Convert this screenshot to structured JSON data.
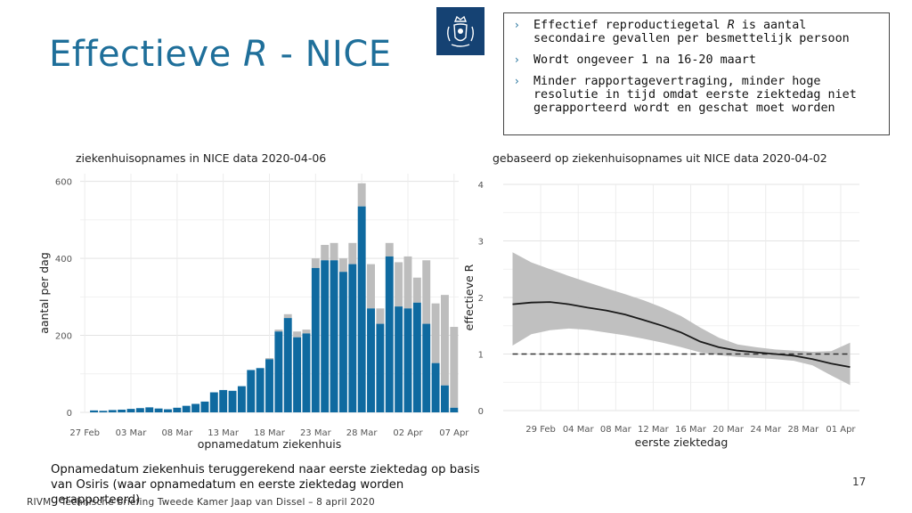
{
  "slide": {
    "title_main": "Effectieve ",
    "title_italic": "R",
    "title_end": " - NICE",
    "bullets": [
      {
        "parts": [
          "Effectief reproductiegetal ",
          "R",
          " is aantal secondaire gevallen per besmettelijk persoon"
        ]
      },
      {
        "parts": [
          "Wordt ongeveer 1 na 16-20 maart"
        ]
      },
      {
        "parts": [
          "Minder rapportagevertraging, minder hoge resolutie in tijd omdat eerste ziektedag niet gerapporteerd wordt en geschat moet worden"
        ]
      }
    ],
    "bullet_icon": "chevron-right-icon",
    "logo_icon": "rijksoverheid-logo-icon",
    "caption": "Opnamedatum ziekenhuis teruggerekend naar eerste ziektedag op basis van Osiris (waar opnamedatum en eerste ziektedag worden gerapporteerd)",
    "page_number": "17",
    "footer": "RIVM - Technische briefing Tweede Kamer Jaap van Dissel – 8 april 2020",
    "colors": {
      "title": "#1f6f9a",
      "bar_reported": "#0f6aa0",
      "bar_total": "#bdbdbd",
      "band": "#bdbdbd",
      "line": "#1a1a1a",
      "logo_bg": "#154273"
    }
  },
  "chart_data": [
    {
      "type": "bar",
      "title": "ziekenhuisopnames in NICE data 2020-04-06",
      "xlabel": "opnamedatum ziekenhuis",
      "ylabel": "aantal per dag",
      "ylim": [
        0,
        620
      ],
      "yticks": [
        0,
        200,
        400,
        600
      ],
      "categories": [
        "27 Feb",
        "28 Feb",
        "29 Feb",
        "01 Mar",
        "02 Mar",
        "03 Mar",
        "04 Mar",
        "05 Mar",
        "06 Mar",
        "07 Mar",
        "08 Mar",
        "09 Mar",
        "10 Mar",
        "11 Mar",
        "12 Mar",
        "13 Mar",
        "14 Mar",
        "15 Mar",
        "16 Mar",
        "17 Mar",
        "18 Mar",
        "19 Mar",
        "20 Mar",
        "21 Mar",
        "22 Mar",
        "23 Mar",
        "24 Mar",
        "25 Mar",
        "26 Mar",
        "27 Mar",
        "28 Mar",
        "29 Mar",
        "30 Mar",
        "31 Mar",
        "01 Apr",
        "02 Apr",
        "03 Apr",
        "04 Apr",
        "05 Apr",
        "06 Apr",
        "07 Apr"
      ],
      "xtick_labels": [
        "27 Feb",
        "03 Mar",
        "08 Mar",
        "13 Mar",
        "18 Mar",
        "23 Mar",
        "28 Mar",
        "02 Apr",
        "07 Apr"
      ],
      "stacked": true,
      "series": [
        {
          "values": [
            0,
            5,
            4,
            6,
            7,
            9,
            11,
            13,
            10,
            8,
            12,
            17,
            22,
            28,
            52,
            58,
            56,
            68,
            110,
            115,
            138,
            210,
            245,
            195,
            205,
            375,
            395,
            395,
            365,
            385,
            535,
            270,
            230,
            405,
            275,
            270,
            285,
            230,
            128,
            70,
            12
          ]
        },
        {
          "values": [
            0,
            0,
            0,
            0,
            0,
            0,
            0,
            0,
            0,
            0,
            0,
            0,
            0,
            0,
            0,
            0,
            0,
            0,
            0,
            0,
            3,
            5,
            10,
            15,
            10,
            25,
            40,
            45,
            35,
            55,
            60,
            115,
            40,
            35,
            115,
            135,
            65,
            165,
            155,
            235,
            210
          ]
        }
      ]
    },
    {
      "type": "line",
      "title": "gebaseerd op ziekenhuisopnames uit NICE data 2020-04-02",
      "xlabel": "eerste ziektedag",
      "ylabel": "effectieve R",
      "ylim": [
        0,
        4
      ],
      "yticks": [
        0,
        1,
        2,
        3,
        4
      ],
      "xtick_labels": [
        "29 Feb",
        "04 Mar",
        "08 Mar",
        "12 Mar",
        "16 Mar",
        "20 Mar",
        "24 Mar",
        "28 Mar",
        "01 Apr"
      ],
      "x": [
        "26 Feb",
        "28 Feb",
        "01 Mar",
        "03 Mar",
        "05 Mar",
        "07 Mar",
        "09 Mar",
        "11 Mar",
        "13 Mar",
        "15 Mar",
        "17 Mar",
        "19 Mar",
        "21 Mar",
        "23 Mar",
        "25 Mar",
        "27 Mar",
        "29 Mar",
        "31 Mar",
        "02 Apr"
      ],
      "series": [
        {
          "values": [
            1.88,
            1.91,
            1.92,
            1.88,
            1.82,
            1.77,
            1.7,
            1.6,
            1.5,
            1.38,
            1.22,
            1.12,
            1.06,
            1.03,
            1.0,
            0.97,
            0.91,
            0.83,
            0.77
          ]
        },
        {
          "values": [
            1.15,
            1.35,
            1.42,
            1.45,
            1.43,
            1.38,
            1.33,
            1.27,
            1.2,
            1.12,
            1.03,
            0.98,
            0.95,
            0.93,
            0.91,
            0.88,
            0.8,
            0.62,
            0.45
          ]
        },
        {
          "values": [
            2.8,
            2.62,
            2.5,
            2.38,
            2.27,
            2.16,
            2.06,
            1.95,
            1.82,
            1.67,
            1.47,
            1.29,
            1.17,
            1.12,
            1.08,
            1.06,
            1.04,
            1.05,
            1.2
          ]
        }
      ],
      "reference_line": 1
    }
  ]
}
